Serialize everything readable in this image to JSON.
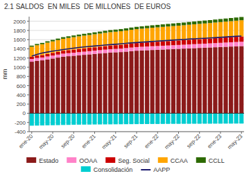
{
  "chart_data": {
    "type": "bar",
    "title": "2.1 SALDOS  EN MILES  DE MILLONES  DE EUROS",
    "y_label": "mm",
    "stacked": true,
    "grid": true,
    "legend": "bottom",
    "ylim": [
      -400,
      2100
    ],
    "yticks": [
      -400,
      -200,
      0,
      200,
      400,
      600,
      800,
      1000,
      1200,
      1400,
      1600,
      1800,
      2000
    ],
    "categories": [
      "ene-20",
      null,
      null,
      null,
      "may-20",
      null,
      null,
      null,
      "sep-20",
      null,
      null,
      null,
      "ene-21",
      null,
      null,
      null,
      "may-21",
      null,
      null,
      null,
      "sep-21",
      null,
      null,
      null,
      "ene-22",
      null,
      null,
      null,
      "may-22",
      null,
      null,
      null,
      "sep-22",
      null,
      null,
      null,
      "ene-23",
      null,
      null,
      null,
      "may-23"
    ],
    "series": [
      {
        "name": "Estado",
        "type": "bar",
        "color": "#8B1A1A",
        "values": [
          1120,
          1140,
          1150,
          1170,
          1190,
          1210,
          1230,
          1240,
          1250,
          1260,
          1270,
          1280,
          1290,
          1300,
          1310,
          1320,
          1325,
          1330,
          1340,
          1350,
          1360,
          1365,
          1370,
          1375,
          1380,
          1385,
          1390,
          1395,
          1400,
          1405,
          1410,
          1415,
          1420,
          1425,
          1430,
          1435,
          1440,
          1445,
          1450,
          1455,
          1460
        ]
      },
      {
        "name": "OOAA",
        "type": "bar",
        "color": "#FF82C8",
        "values": [
          60,
          62,
          63,
          65,
          65,
          65,
          66,
          67,
          67,
          68,
          69,
          70,
          71,
          72,
          73,
          74,
          75,
          76,
          77,
          78,
          79,
          80,
          81,
          82,
          82,
          83,
          83,
          84,
          85,
          85,
          86,
          87,
          88,
          88,
          89,
          90,
          91,
          92,
          93,
          94,
          95
        ]
      },
      {
        "name": "Seg. Social",
        "type": "bar",
        "color": "#CC0000",
        "values": [
          50,
          52,
          53,
          55,
          58,
          60,
          63,
          65,
          67,
          69,
          70,
          71,
          73,
          75,
          77,
          79,
          80,
          82,
          84,
          86,
          87,
          88,
          90,
          92,
          93,
          94,
          95,
          96,
          97,
          98,
          100,
          101,
          102,
          104,
          105,
          107,
          108,
          110,
          112,
          113,
          115
        ]
      },
      {
        "name": "CCAA",
        "type": "bar",
        "color": "#FFA500",
        "values": [
          215,
          225,
          235,
          245,
          250,
          255,
          260,
          265,
          270,
          275,
          278,
          280,
          283,
          285,
          288,
          290,
          292,
          295,
          297,
          300,
          302,
          305,
          307,
          310,
          312,
          315,
          318,
          320,
          322,
          325,
          328,
          330,
          333,
          335,
          337,
          340,
          343,
          345,
          347,
          350,
          352
        ]
      },
      {
        "name": "CCLL",
        "type": "bar",
        "color": "#2D6A00",
        "values": [
          25,
          27,
          28,
          30,
          32,
          33,
          35,
          36,
          37,
          38,
          40,
          41,
          42,
          43,
          44,
          45,
          46,
          47,
          48,
          49,
          50,
          51,
          52,
          53,
          54,
          55,
          56,
          57,
          58,
          59,
          60,
          61,
          62,
          63,
          64,
          65,
          66,
          67,
          68,
          69,
          70
        ]
      },
      {
        "name": "Consolidación",
        "type": "bar",
        "color": "#00CED1",
        "values": [
          -270,
          -268,
          -265,
          -262,
          -260,
          -258,
          -255,
          -253,
          -250,
          -248,
          -247,
          -246,
          -244,
          -243,
          -242,
          -241,
          -240,
          -239,
          -238,
          -237,
          -236,
          -235,
          -234,
          -233,
          -233,
          -232,
          -231,
          -230,
          -230,
          -229,
          -229,
          -228,
          -228,
          -227,
          -227,
          -226,
          -226,
          -225,
          -225,
          -224,
          -224
        ]
      },
      {
        "name": "AAPP",
        "type": "line",
        "color": "#1a1a6e",
        "values": [
          1240,
          1280,
          1310,
          1330,
          1350,
          1365,
          1385,
          1400,
          1415,
          1430,
          1442,
          1452,
          1462,
          1472,
          1482,
          1492,
          1500,
          1510,
          1520,
          1530,
          1537,
          1545,
          1552,
          1560,
          1568,
          1575,
          1582,
          1590,
          1597,
          1604,
          1612,
          1618,
          1625,
          1630,
          1637,
          1643,
          1650,
          1658,
          1665,
          1672,
          1678
        ]
      }
    ]
  }
}
